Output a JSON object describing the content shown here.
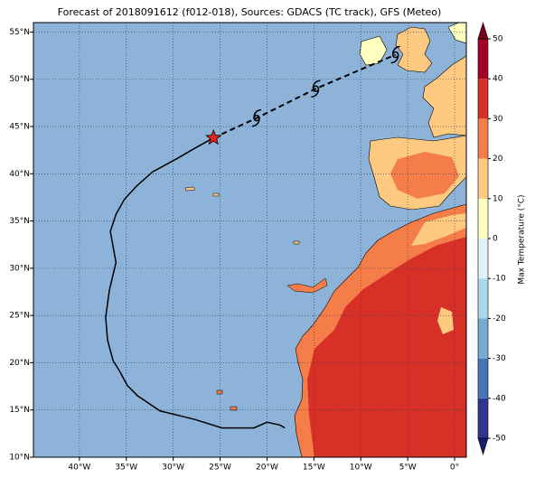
{
  "chart_data": {
    "type": "map",
    "title": "Forecast of 2018091612 (f012-018), Sources: GDACS (TC track), GFS (Meteo)",
    "xlim": [
      -44.9,
      1.25
    ],
    "ylim": [
      10,
      56
    ],
    "xticks": [
      {
        "value": -40,
        "label": "40°W"
      },
      {
        "value": -35,
        "label": "35°W"
      },
      {
        "value": -30,
        "label": "30°W"
      },
      {
        "value": -25,
        "label": "25°W"
      },
      {
        "value": -20,
        "label": "20°W"
      },
      {
        "value": -15,
        "label": "15°W"
      },
      {
        "value": -10,
        "label": "10°W"
      },
      {
        "value": -5,
        "label": "5°W"
      },
      {
        "value": 0,
        "label": "0°"
      }
    ],
    "yticks": [
      {
        "value": 10,
        "label": "10°N"
      },
      {
        "value": 15,
        "label": "15°N"
      },
      {
        "value": 20,
        "label": "20°N"
      },
      {
        "value": 25,
        "label": "25°N"
      },
      {
        "value": 30,
        "label": "30°N"
      },
      {
        "value": 35,
        "label": "35°N"
      },
      {
        "value": 40,
        "label": "40°N"
      },
      {
        "value": 45,
        "label": "45°N"
      },
      {
        "value": 50,
        "label": "50°N"
      },
      {
        "value": 55,
        "label": "55°N"
      }
    ],
    "grid": true,
    "past_track": {
      "lon": [
        -18.1,
        -18.6,
        -20.0,
        -21.4,
        -24.8,
        -27.7,
        -31.4,
        -33.8,
        -34.9,
        -35.7,
        -36.4,
        -37.0,
        -37.2,
        -36.8,
        -36.1,
        -36.7,
        -36.1,
        -35.2,
        -33.9,
        -32.2,
        -29.6,
        -27.7,
        -25.7
      ],
      "lat": [
        13.1,
        13.4,
        13.7,
        13.1,
        13.1,
        14.0,
        14.9,
        16.5,
        17.6,
        19.1,
        20.2,
        22.4,
        24.8,
        27.7,
        30.6,
        33.9,
        35.7,
        37.3,
        38.7,
        40.2,
        41.6,
        42.7,
        43.8
      ],
      "color": "#000000"
    },
    "current": {
      "lon": -25.7,
      "lat": 43.8,
      "color": "#e8231d"
    },
    "forecast": {
      "lon": [
        -21.1,
        -14.8,
        -6.3
      ],
      "lat": [
        45.9,
        49.0,
        52.6
      ],
      "color": "#000000"
    },
    "colorbar": {
      "label": "Max Temperature (°C)",
      "ticks": [
        -50,
        -40,
        -30,
        -20,
        -10,
        0,
        10,
        20,
        30,
        40,
        50
      ],
      "colors": [
        "#313695",
        "#4575b4",
        "#74add1",
        "#abd9e9",
        "#e0f3f8",
        "#ffffbf",
        "#fec980",
        "#f47d4a",
        "#d73027",
        "#a50026"
      ],
      "extend_colors": [
        "#1c1c6e",
        "#7a0020"
      ]
    }
  }
}
